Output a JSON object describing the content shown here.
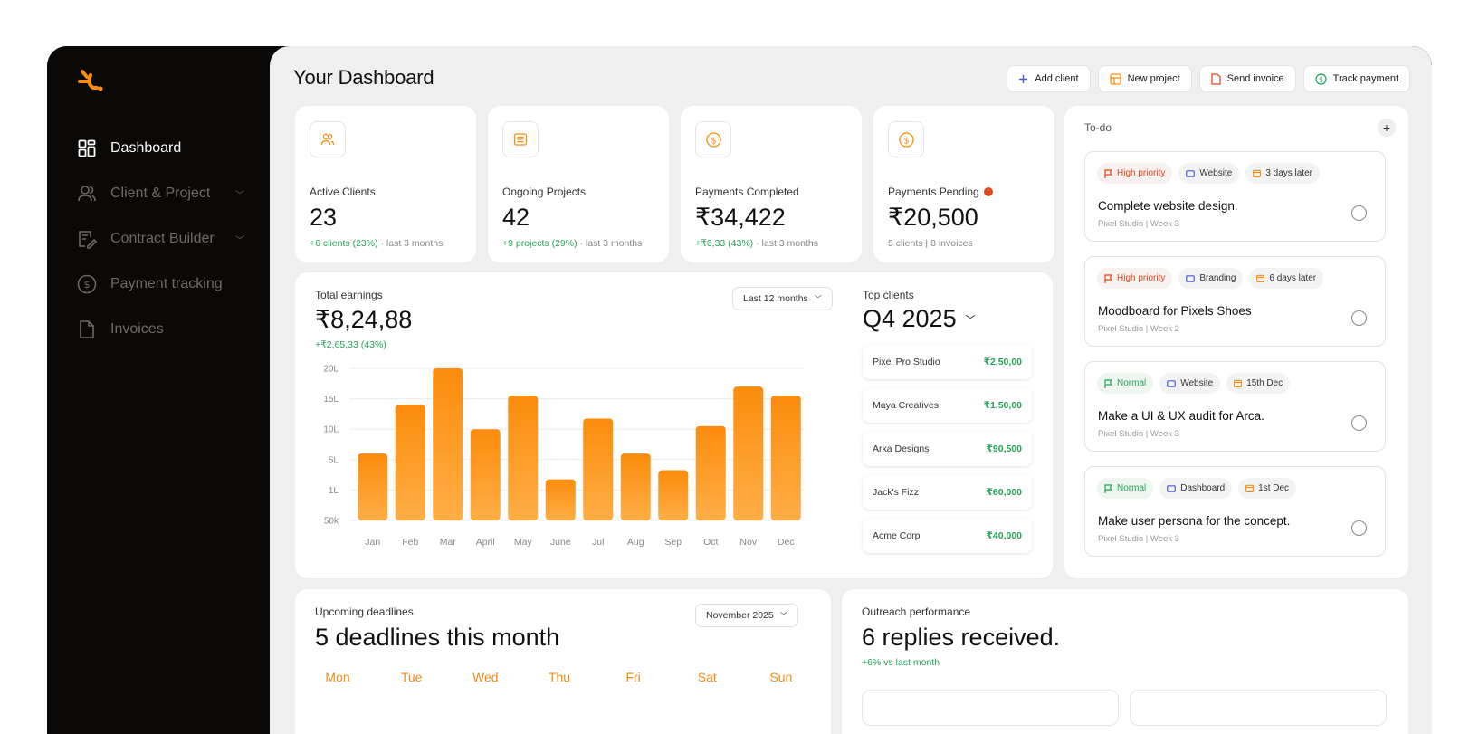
{
  "sidebar": {
    "items": [
      {
        "label": "Dashboard",
        "icon": "grid-icon"
      },
      {
        "label": "Client & Project",
        "icon": "users-icon"
      },
      {
        "label": "Contract Builder",
        "icon": "contract-icon"
      },
      {
        "label": "Payment tracking",
        "icon": "dollar-circle-icon"
      },
      {
        "label": "Invoices",
        "icon": "file-icon"
      }
    ]
  },
  "header": {
    "title": "Your Dashboard",
    "actions": [
      "Add client",
      "New project",
      "Send invoice",
      "Track payment"
    ]
  },
  "stats": [
    {
      "label": "Active Clients",
      "value": "23",
      "change": "+6 clients (23%)",
      "period": "· last 3 months"
    },
    {
      "label": "Ongoing Projects",
      "value": "42",
      "change": "+9 projects (29%)",
      "period": "· last 3 months"
    },
    {
      "label": "Payments Completed",
      "value": "₹34,422",
      "change": "+₹6,33 (43%)",
      "period": "· last 3 months"
    },
    {
      "label": "Payments Pending",
      "value": "₹20,500",
      "change": "5 clients | 8 invoices",
      "alert": "!"
    }
  ],
  "earnings": {
    "label": "Total earnings",
    "value": "₹8,24,88",
    "change": "+₹2,65,33 (43%)",
    "range": "Last 12 months"
  },
  "chart_data": {
    "type": "bar",
    "categories": [
      "Jan",
      "Feb",
      "Mar",
      "April",
      "May",
      "June",
      "Jul",
      "Aug",
      "Sep",
      "Oct",
      "Nov",
      "Dec"
    ],
    "values": [
      0.44,
      0.76,
      1.0,
      0.6,
      0.82,
      0.27,
      0.67,
      0.44,
      0.33,
      0.62,
      0.88,
      0.82
    ],
    "ytick_labels": [
      "20L",
      "15L",
      "10L",
      "5L",
      "1L",
      "50k"
    ],
    "ylim": [
      0,
      1
    ],
    "grid": true,
    "color": "#fb8c0c"
  },
  "top_clients": {
    "label": "Top clients",
    "quarter": "Q4 2025",
    "items": [
      {
        "name": "Pixel Pro Studio",
        "amount": "₹2,50,00"
      },
      {
        "name": "Maya Creatives",
        "amount": "₹1,50,00"
      },
      {
        "name": "Arka Designs",
        "amount": "₹90,500"
      },
      {
        "name": "Jack's Fizz",
        "amount": "₹60,000"
      },
      {
        "name": "Acme Corp",
        "amount": "₹40,000"
      }
    ]
  },
  "todo": {
    "title": "To-do",
    "add": "+",
    "tasks": [
      {
        "priority": "High priority",
        "category": "Website",
        "due": "3 days later",
        "title": "Complete website design.",
        "meta": "Pixel Studio | Week 3"
      },
      {
        "priority": "High priority",
        "category": "Branding",
        "due": "6 days later",
        "title": "Moodboard for Pixels Shoes",
        "meta": "Pixel Studio | Week 2"
      },
      {
        "priority": "Normal",
        "category": "Website",
        "due": "15th Dec",
        "title": "Make a UI & UX audit for Arca.",
        "meta": "Pixel Studio | Week 3"
      },
      {
        "priority": "Normal",
        "category": "Dashboard",
        "due": "1st Dec",
        "title": "Make user persona for the concept.",
        "meta": "Pixel Studio | Week 3"
      }
    ]
  },
  "deadlines": {
    "label": "Upcoming deadlines",
    "value": "5 deadlines this month",
    "month": "November 2025",
    "days": [
      "Mon",
      "Tue",
      "Wed",
      "Thu",
      "Fri",
      "Sat",
      "Sun"
    ]
  },
  "outreach": {
    "label": "Outreach performance",
    "value": "6 replies received.",
    "change": "+6% vs last month"
  },
  "colors": {
    "accent": "#fb8c0c",
    "positive": "#27a35a",
    "negative": "#e0481f"
  }
}
